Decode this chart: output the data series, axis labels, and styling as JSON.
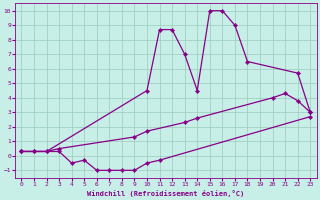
{
  "bg_color": "#c8eee8",
  "line_color": "#880088",
  "grid_color": "#99ccbb",
  "xlabel": "Windchill (Refroidissement éolien,°C)",
  "xlim": [
    -0.5,
    23.5
  ],
  "ylim": [
    -1.5,
    10.5
  ],
  "xticks": [
    0,
    1,
    2,
    3,
    4,
    5,
    6,
    7,
    8,
    9,
    10,
    11,
    12,
    13,
    14,
    15,
    16,
    17,
    18,
    19,
    20,
    21,
    22,
    23
  ],
  "yticks": [
    -1,
    0,
    1,
    2,
    3,
    4,
    5,
    6,
    7,
    8,
    9,
    10
  ],
  "curve_top_x": [
    0,
    1,
    2,
    10,
    11,
    12,
    13,
    14,
    15,
    16,
    17,
    18,
    22,
    23
  ],
  "curve_top_y": [
    0.3,
    0.3,
    0.3,
    4.5,
    8.7,
    8.7,
    7.0,
    4.5,
    10.0,
    10.0,
    9.0,
    6.5,
    5.7,
    3.0
  ],
  "curve_mid_x": [
    0,
    1,
    2,
    3,
    9,
    10,
    13,
    14,
    20,
    21,
    22,
    23
  ],
  "curve_mid_y": [
    0.3,
    0.3,
    0.3,
    0.5,
    1.3,
    1.7,
    2.3,
    2.6,
    4.0,
    4.3,
    3.8,
    3.0
  ],
  "curve_bot_x": [
    0,
    3,
    4,
    5,
    6,
    7,
    8,
    9,
    10,
    11,
    23
  ],
  "curve_bot_y": [
    0.3,
    0.3,
    -0.5,
    -0.3,
    -1.0,
    -1.0,
    -1.0,
    -1.0,
    -0.5,
    -0.3,
    2.7
  ]
}
